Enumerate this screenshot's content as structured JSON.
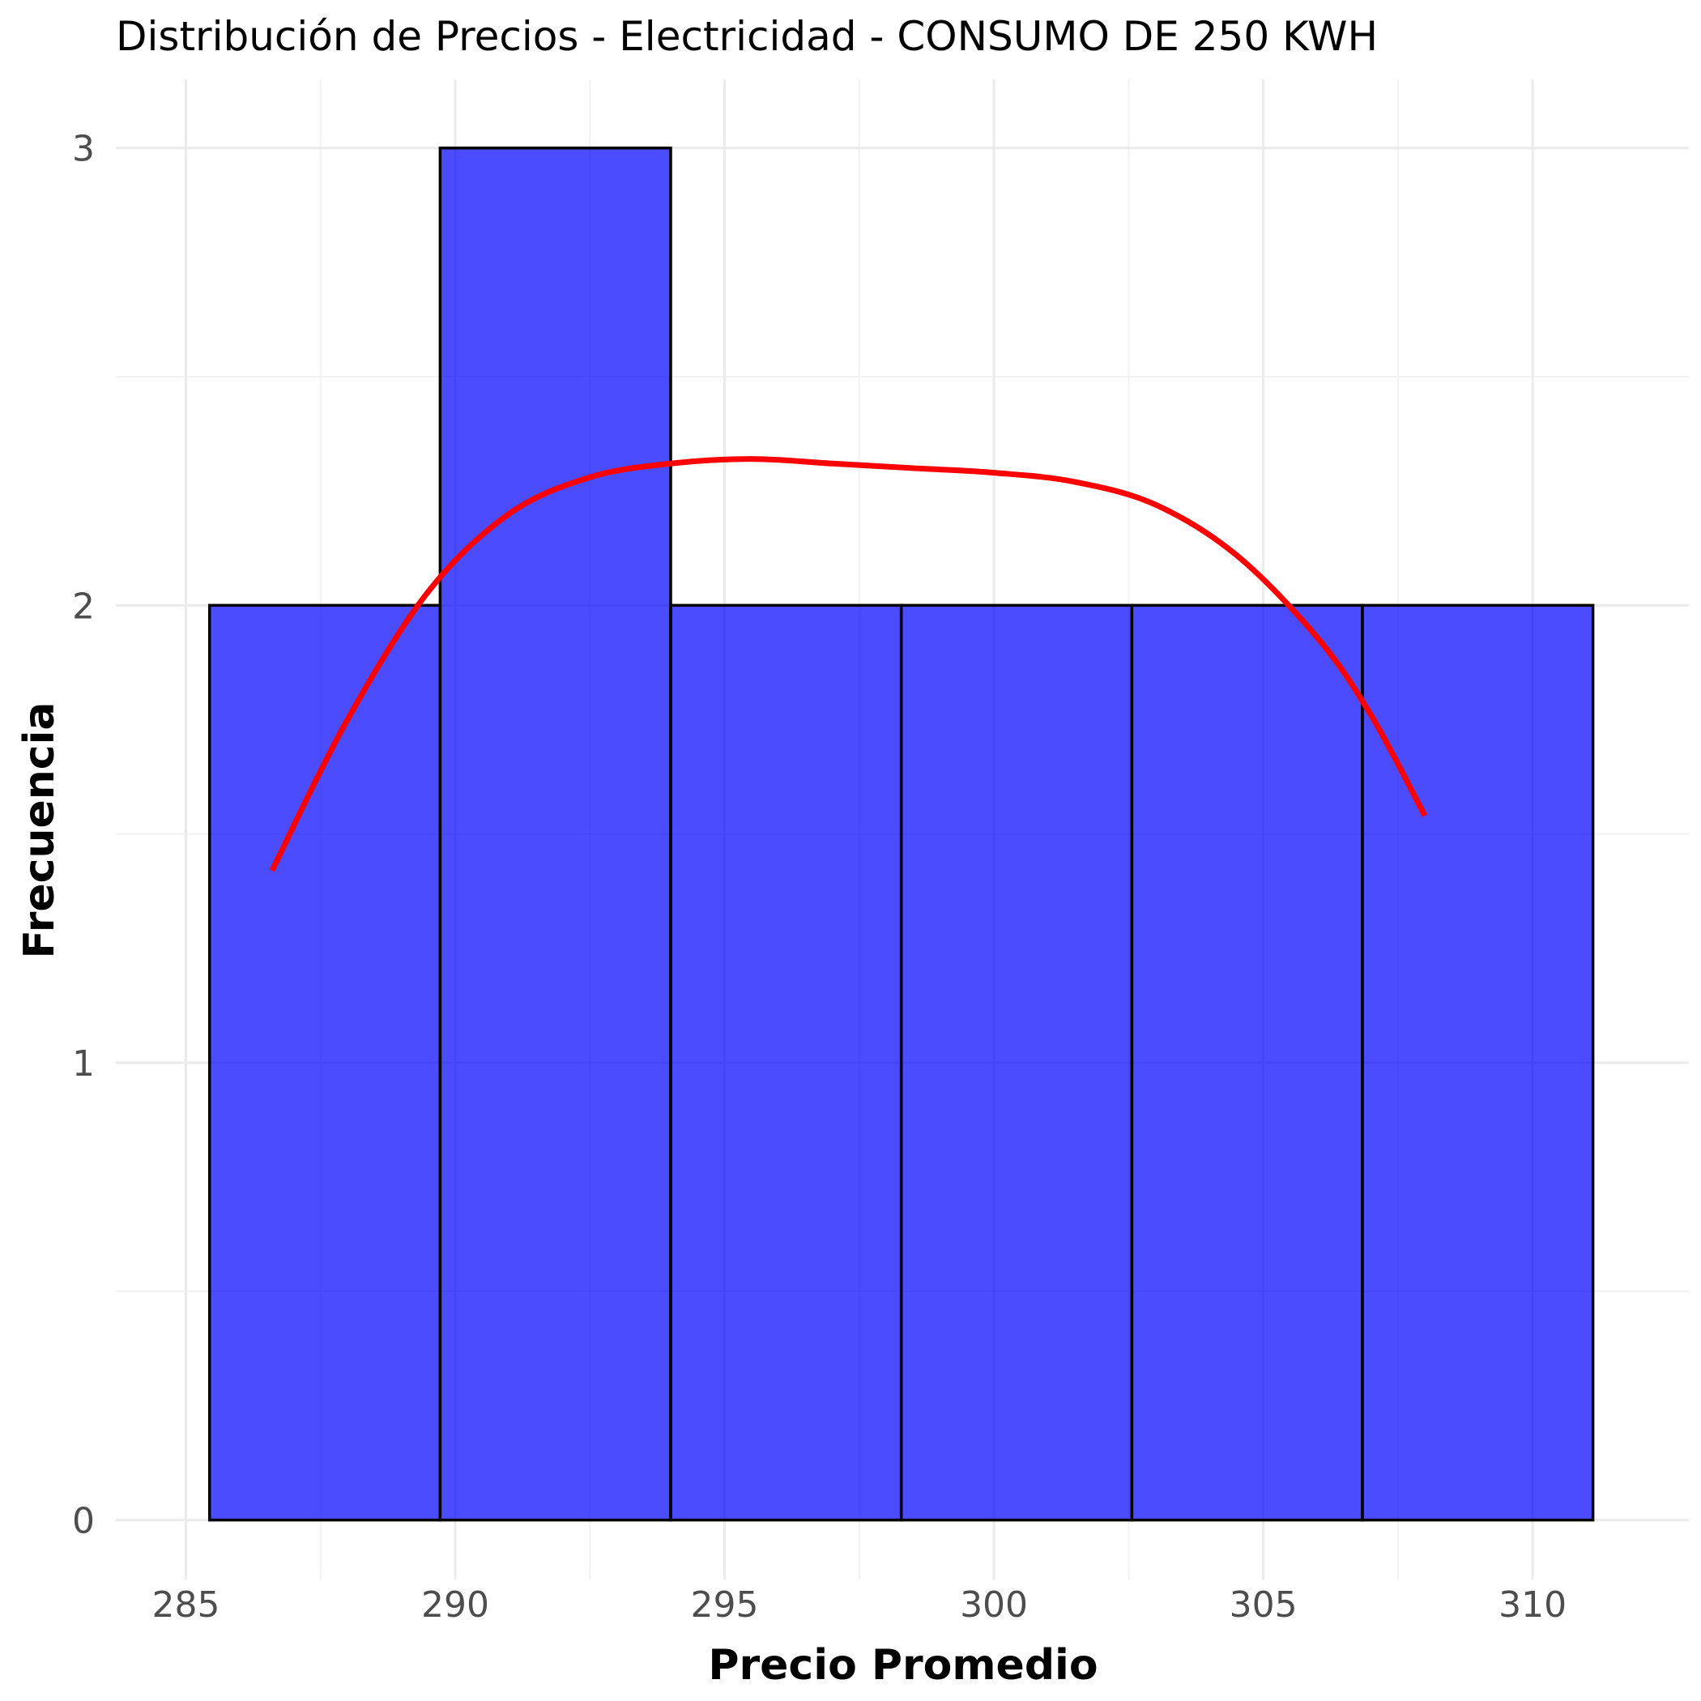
{
  "chart_data": {
    "type": "histogram",
    "title": "Distribución de Precios - Electricidad - CONSUMO DE 250 KWH",
    "xlabel": "Precio Promedio",
    "ylabel": "Frecuencia",
    "xlim": [
      283.7,
      312.9
    ],
    "ylim": [
      -0.13,
      3.15
    ],
    "x_ticks": [
      285,
      290,
      295,
      300,
      305,
      310
    ],
    "x_tick_labels": [
      "285",
      "290",
      "295",
      "300",
      "305",
      "310"
    ],
    "y_ticks": [
      0,
      1,
      2,
      3
    ],
    "y_tick_labels": [
      "0",
      "1",
      "2",
      "3"
    ],
    "grid": true,
    "bins": [
      {
        "x0": 285.44,
        "x1": 289.72,
        "count": 2
      },
      {
        "x0": 289.72,
        "x1": 294.0,
        "count": 3
      },
      {
        "x0": 294.0,
        "x1": 298.28,
        "count": 2
      },
      {
        "x0": 298.28,
        "x1": 302.56,
        "count": 2
      },
      {
        "x0": 302.56,
        "x1": 306.84,
        "count": 2
      },
      {
        "x0": 306.84,
        "x1": 311.12,
        "count": 2
      }
    ],
    "density_curve": {
      "x": [
        286.6,
        288,
        289.5,
        291,
        292.5,
        294,
        295.5,
        297,
        298.5,
        300,
        301.5,
        303,
        304.5,
        306,
        307,
        308
      ],
      "y": [
        1.42,
        1.75,
        2.03,
        2.2,
        2.28,
        2.31,
        2.32,
        2.31,
        2.3,
        2.29,
        2.27,
        2.22,
        2.11,
        1.93,
        1.76,
        1.54
      ]
    },
    "colors": {
      "bar_fill": "#0000ff",
      "bar_fill_opacity": 0.7,
      "bar_edge": "#000000",
      "density": "#ff0000"
    }
  }
}
